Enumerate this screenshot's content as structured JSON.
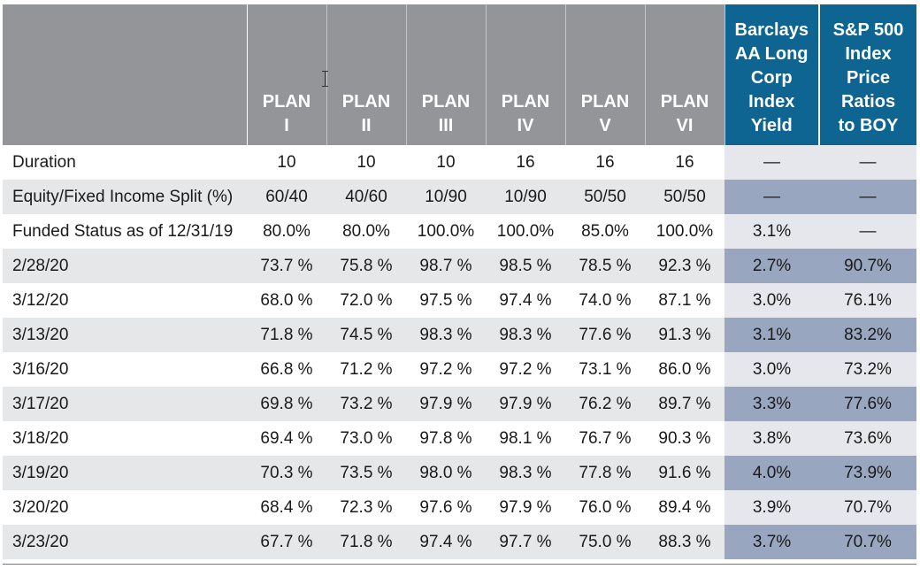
{
  "header": {
    "row_label": "",
    "plans": [
      [
        "PLAN",
        "I"
      ],
      [
        "PLAN",
        "II"
      ],
      [
        "PLAN",
        "III"
      ],
      [
        "PLAN",
        "IV"
      ],
      [
        "PLAN",
        "V"
      ],
      [
        "PLAN",
        "VI"
      ]
    ],
    "yield": [
      "Barclays",
      "AA Long",
      "Corp",
      "Index",
      "Yield"
    ],
    "sp500": [
      "S&P 500",
      "Index",
      "Price",
      "Ratios",
      "to BOY"
    ]
  },
  "rows": [
    {
      "label": "Duration",
      "plans": [
        "10",
        "10",
        "10",
        "16",
        "16",
        "16"
      ],
      "yield": "—",
      "sp500": "—"
    },
    {
      "label": "Equity/Fixed Income Split (%)",
      "plans": [
        "60/40",
        "40/60",
        "10/90",
        "10/90",
        "50/50",
        "50/50"
      ],
      "yield": "—",
      "sp500": "—"
    },
    {
      "label": "Funded Status as of 12/31/19",
      "plans": [
        "80.0%",
        "80.0%",
        "100.0%",
        "100.0%",
        "85.0%",
        "100.0%"
      ],
      "yield": "3.1%",
      "sp500": "—"
    },
    {
      "label": "2/28/20",
      "plans": [
        "73.7 %",
        "75.8 %",
        "98.7 %",
        "98.5 %",
        "78.5 %",
        "92.3 %"
      ],
      "yield": "2.7%",
      "sp500": "90.7%"
    },
    {
      "label": "3/12/20",
      "plans": [
        "68.0 %",
        "72.0 %",
        "97.5 %",
        "97.4 %",
        "74.0 %",
        "87.1 %"
      ],
      "yield": "3.0%",
      "sp500": "76.1%"
    },
    {
      "label": "3/13/20",
      "plans": [
        "71.8 %",
        "74.5 %",
        "98.3 %",
        "98.3 %",
        "77.6 %",
        "91.3 %"
      ],
      "yield": "3.1%",
      "sp500": "83.2%"
    },
    {
      "label": "3/16/20",
      "plans": [
        "66.8 %",
        "71.2 %",
        "97.2 %",
        "97.2 %",
        "73.1 %",
        "86.0 %"
      ],
      "yield": "3.0%",
      "sp500": "73.2%"
    },
    {
      "label": "3/17/20",
      "plans": [
        "69.8 %",
        "73.2 %",
        "97.9 %",
        "97.9 %",
        "76.2 %",
        "89.7 %"
      ],
      "yield": "3.3%",
      "sp500": "77.6%"
    },
    {
      "label": "3/18/20",
      "plans": [
        "69.4 %",
        "73.0 %",
        "97.8 %",
        "98.1 %",
        "76.7 %",
        "90.3 %"
      ],
      "yield": "3.8%",
      "sp500": "73.6%"
    },
    {
      "label": "3/19/20",
      "plans": [
        "70.3 %",
        "73.5 %",
        "98.0 %",
        "98.3 %",
        "77.8 %",
        "91.6 %"
      ],
      "yield": "4.0%",
      "sp500": "73.9%"
    },
    {
      "label": "3/20/20",
      "plans": [
        "68.4 %",
        "72.3 %",
        "97.6 %",
        "97.9 %",
        "76.0 %",
        "89.4 %"
      ],
      "yield": "3.9%",
      "sp500": "70.7%"
    },
    {
      "label": "3/23/20",
      "plans": [
        "67.7 %",
        "71.8 %",
        "97.4 %",
        "97.7 %",
        "75.0 %",
        "88.3 %"
      ],
      "yield": "3.7%",
      "sp500": "70.7%"
    }
  ],
  "colors": {
    "header_gray": "#939598",
    "header_blue": "#0e6591",
    "row_alt": "#e6e7e8",
    "highlight": "#99a6bf"
  }
}
